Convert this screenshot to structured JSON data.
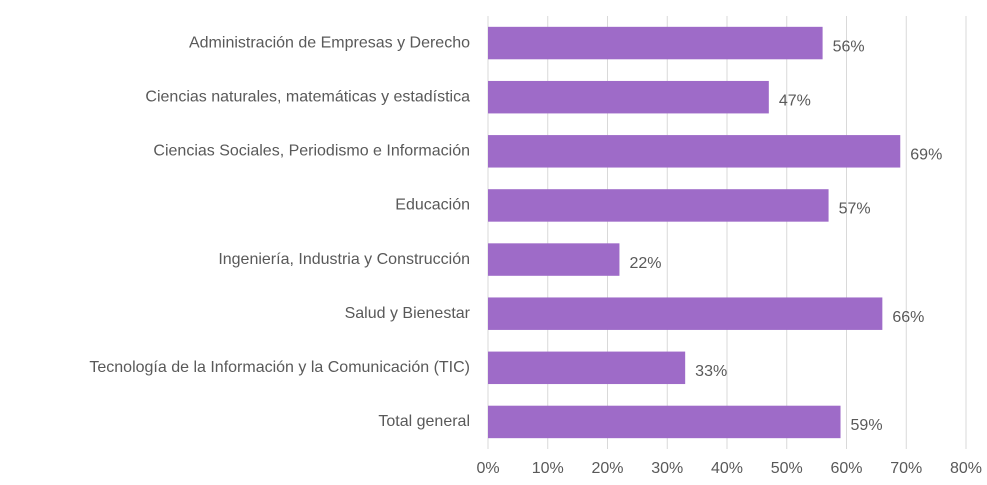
{
  "chart_data": {
    "type": "barh",
    "categories": [
      "Administración de Empresas y Derecho",
      "Ciencias naturales, matemáticas y estadística",
      "Ciencias Sociales, Periodismo e Información",
      "Educación",
      "Ingeniería, Industria y Construcción",
      "Salud y Bienestar",
      "Tecnología de la Información y la Comunicación (TIC)",
      "Total general"
    ],
    "values": [
      56,
      47,
      69,
      57,
      22,
      66,
      33,
      59
    ],
    "value_labels": [
      "56%",
      "47%",
      "69%",
      "57%",
      "22%",
      "66%",
      "33%",
      "59%"
    ],
    "color": "#9e6bc8",
    "xlim": [
      0,
      80
    ],
    "xticks": [
      {
        "value": 0,
        "label": "0%"
      },
      {
        "value": 10,
        "label": "10%"
      },
      {
        "value": 20,
        "label": "20%"
      },
      {
        "value": 30,
        "label": "30%"
      },
      {
        "value": 40,
        "label": "40%"
      },
      {
        "value": 50,
        "label": "50%"
      },
      {
        "value": 60,
        "label": "60%"
      },
      {
        "value": 70,
        "label": "70%"
      },
      {
        "value": 80,
        "label": "80%"
      }
    ],
    "grid": true
  }
}
